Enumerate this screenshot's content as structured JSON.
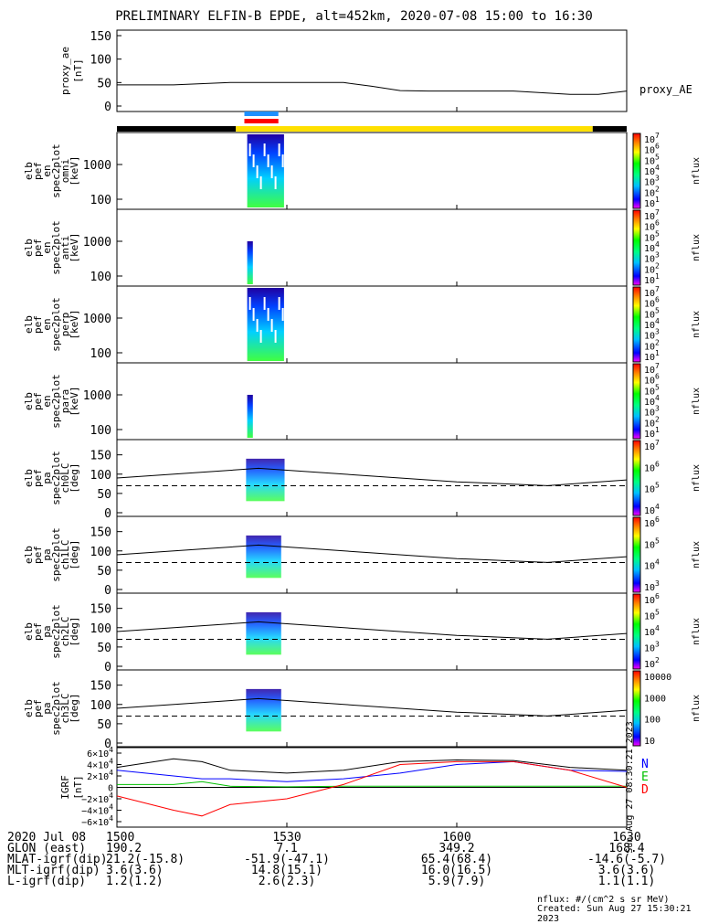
{
  "title": "PRELIMINARY ELFIN-B EPDE, alt=452km, 2020-07-08 15:00 to 16:30",
  "ae_panel": {
    "ylabel": "proxy_ae\n[nT]",
    "series_label": "proxy_AE",
    "yticks": [
      "150",
      "100",
      "50",
      "0"
    ]
  },
  "spec_panels": [
    {
      "ylabel": [
        "elb",
        "pef",
        "en",
        "spec2plot",
        "omni",
        "[keV]"
      ],
      "yticks": [
        "1000",
        "100"
      ],
      "cb_ticks": [
        "10^7",
        "10^6",
        "10^5",
        "10^4",
        "10^3",
        "10^2",
        "10^1"
      ],
      "cb_label": "nflux"
    },
    {
      "ylabel": [
        "elb",
        "pef",
        "en",
        "spec2plot",
        "anti",
        "[keV]"
      ],
      "yticks": [
        "1000",
        "100"
      ],
      "cb_ticks": [
        "10^7",
        "10^6",
        "10^5",
        "10^4",
        "10^3",
        "10^2",
        "10^1"
      ],
      "cb_label": "nflux"
    },
    {
      "ylabel": [
        "elb",
        "pef",
        "en",
        "spec2plot",
        "perp",
        "[keV]"
      ],
      "yticks": [
        "1000",
        "100"
      ],
      "cb_ticks": [
        "10^7",
        "10^6",
        "10^5",
        "10^4",
        "10^3",
        "10^2",
        "10^1"
      ],
      "cb_label": "nflux"
    },
    {
      "ylabel": [
        "elb",
        "pef",
        "en",
        "spec2plot",
        "para",
        "[keV]"
      ],
      "yticks": [
        "1000",
        "100"
      ],
      "cb_ticks": [
        "10^7",
        "10^6",
        "10^5",
        "10^4",
        "10^3",
        "10^2",
        "10^1"
      ],
      "cb_label": "nflux"
    }
  ],
  "pa_panels": [
    {
      "ylabel": [
        "elb",
        "pef",
        "pa",
        "spec2plot",
        "ch0LC",
        "[deg]"
      ],
      "yticks": [
        "150",
        "100",
        "50",
        "0"
      ],
      "cb_ticks": [
        "10^7",
        "10^6",
        "10^5",
        "10^4"
      ],
      "cb_label": "nflux"
    },
    {
      "ylabel": [
        "elb",
        "pef",
        "pa",
        "spec2plot",
        "ch1LC",
        "[deg]"
      ],
      "yticks": [
        "150",
        "100",
        "50",
        "0"
      ],
      "cb_ticks": [
        "10^6",
        "10^5",
        "10^4",
        "10^3"
      ],
      "cb_label": "nflux"
    },
    {
      "ylabel": [
        "elb",
        "pef",
        "pa",
        "spec2plot",
        "ch2LC",
        "[deg]"
      ],
      "yticks": [
        "150",
        "100",
        "50",
        "0"
      ],
      "cb_ticks": [
        "10^6",
        "10^5",
        "10^4",
        "10^3",
        "10^2"
      ],
      "cb_label": "nflux"
    },
    {
      "ylabel": [
        "elb",
        "pef",
        "pa",
        "spec2plot",
        "ch3LC",
        "[deg]"
      ],
      "yticks": [
        "150",
        "100",
        "50",
        "0"
      ],
      "cb_ticks": [
        "10000",
        "1000",
        "100",
        "10"
      ],
      "cb_label": "nflux"
    }
  ],
  "igrf_panel": {
    "ylabel": "IGRF\n[nT]",
    "yticks": [
      "6×10^4",
      "4×10^4",
      "2×10^4",
      "0",
      "−2×10^4",
      "−4×10^4",
      "−6×10^4"
    ],
    "legend": [
      "N",
      "E",
      "D"
    ],
    "legend_colors": [
      "#0000ff",
      "#00c000",
      "#ff0000"
    ],
    "side_note": "Sun Aug 27 08:30:21 2023"
  },
  "xaxis": {
    "ticks": [
      "1500",
      "1530",
      "1600",
      "1630"
    ],
    "rows": [
      {
        "label": "2020 Jul 08",
        "values": [
          "1500",
          "1530",
          "1600",
          "1630"
        ]
      },
      {
        "label": "GLON (east)",
        "values": [
          "190.2",
          "7.1",
          "349.2",
          "168.4"
        ]
      },
      {
        "label": "MLAT-igrf(dip)",
        "values": [
          "21.2(-15.8)",
          "-51.9(-47.1)",
          "65.4(68.4)",
          "-14.6(-5.7)"
        ]
      },
      {
        "label": "MLT-igrf(dip)",
        "values": [
          "3.6(3.6)",
          "14.8(15.1)",
          "16.0(16.5)",
          "3.6(3.6)"
        ]
      },
      {
        "label": "L-igrf(dip)",
        "values": [
          "1.2(1.2)",
          "2.6(2.3)",
          "5.9(7.9)",
          "1.1(1.1)"
        ]
      }
    ]
  },
  "footer": {
    "units": "nflux: #/(cm^2 s sr MeV)",
    "created": "Created: Sun Aug 27 15:30:21 2023"
  },
  "colors": {
    "sunlight": "#ffe000",
    "shadow": "#000000",
    "sci_blue": "#1e90ff",
    "sci_red": "#ff0000"
  },
  "chart_data": {
    "type": "line",
    "x_range": [
      "15:00",
      "16:30"
    ],
    "ae": {
      "x_minutes": [
        0,
        10,
        20,
        30,
        40,
        45,
        50,
        55,
        60,
        70,
        80,
        85,
        90
      ],
      "y": [
        45,
        45,
        50,
        50,
        50,
        42,
        33,
        32,
        32,
        32,
        25,
        25,
        32
      ],
      "ylim": [
        0,
        150
      ]
    },
    "spectrogram_time_minutes": [
      22,
      29
    ],
    "pa_reference": {
      "x_minutes": [
        0,
        25,
        60,
        76,
        90
      ],
      "y_solid": [
        90,
        115,
        80,
        70,
        85
      ],
      "y_dashed": 70
    },
    "igrf": {
      "x_minutes": [
        0,
        10,
        15,
        20,
        30,
        40,
        50,
        60,
        70,
        80,
        90
      ],
      "N": [
        30000,
        20000,
        15000,
        15000,
        10000,
        15000,
        25000,
        40000,
        45000,
        30000,
        28000
      ],
      "E": [
        5000,
        5000,
        10000,
        2000,
        1000,
        2000,
        2000,
        2000,
        2000,
        2000,
        2000
      ],
      "D": [
        -15000,
        -40000,
        -50000,
        -30000,
        -20000,
        5000,
        40000,
        45000,
        45000,
        30000,
        0
      ],
      "total": [
        35000,
        50000,
        45000,
        30000,
        25000,
        30000,
        45000,
        48000,
        47000,
        35000,
        30000
      ],
      "ylim": [
        -60000,
        60000
      ]
    }
  }
}
